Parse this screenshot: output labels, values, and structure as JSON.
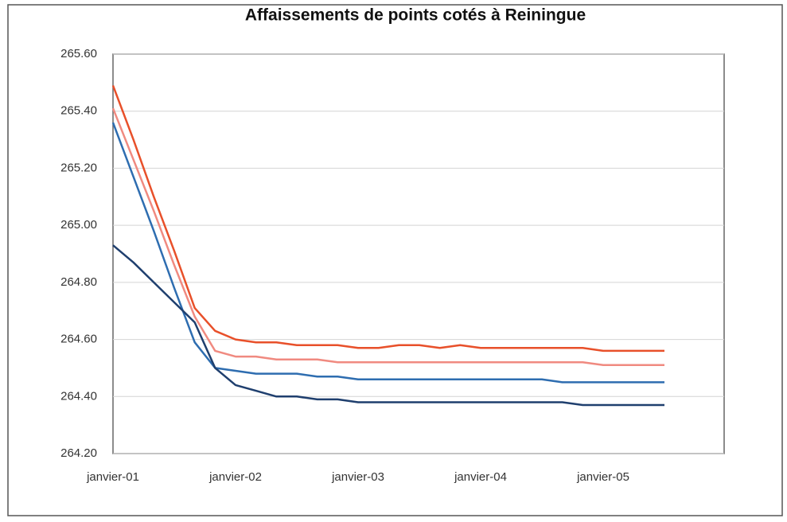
{
  "chart_data": {
    "type": "line",
    "title": "Affaissements de points cotés à Reiningue",
    "categories": [
      "janvier-01",
      null,
      null,
      null,
      null,
      null,
      "janvier-02",
      null,
      null,
      null,
      null,
      null,
      "janvier-03",
      null,
      null,
      null,
      null,
      null,
      "janvier-04",
      null,
      null,
      null,
      null,
      null,
      "janvier-05",
      null,
      null,
      null
    ],
    "series": [
      {
        "color": "#e8502a",
        "values": [
          265.49,
          265.3,
          265.1,
          264.91,
          264.71,
          264.63,
          264.6,
          264.59,
          264.59,
          264.58,
          264.58,
          264.58,
          264.57,
          264.57,
          264.58,
          264.58,
          264.57,
          264.58,
          264.57,
          264.57,
          264.57,
          264.57,
          264.57,
          264.57,
          264.56,
          264.56,
          264.56,
          264.56
        ]
      },
      {
        "color": "#f08a80",
        "values": [
          265.41,
          265.23,
          265.05,
          264.86,
          264.68,
          264.56,
          264.54,
          264.54,
          264.53,
          264.53,
          264.53,
          264.52,
          264.52,
          264.52,
          264.52,
          264.52,
          264.52,
          264.52,
          264.52,
          264.52,
          264.52,
          264.52,
          264.52,
          264.52,
          264.51,
          264.51,
          264.51,
          264.51
        ]
      },
      {
        "color": "#2e6db0",
        "values": [
          265.36,
          265.17,
          264.98,
          264.78,
          264.59,
          264.5,
          264.49,
          264.48,
          264.48,
          264.48,
          264.47,
          264.47,
          264.46,
          264.46,
          264.46,
          264.46,
          264.46,
          264.46,
          264.46,
          264.46,
          264.46,
          264.46,
          264.45,
          264.45,
          264.45,
          264.45,
          264.45,
          264.45
        ]
      },
      {
        "color": "#1f3f6e",
        "values": [
          264.93,
          264.87,
          264.8,
          264.73,
          264.66,
          264.5,
          264.44,
          264.42,
          264.4,
          264.4,
          264.39,
          264.39,
          264.38,
          264.38,
          264.38,
          264.38,
          264.38,
          264.38,
          264.38,
          264.38,
          264.38,
          264.38,
          264.38,
          264.37,
          264.37,
          264.37,
          264.37,
          264.37
        ]
      }
    ],
    "ylim": [
      264.2,
      265.6
    ],
    "yticks": [
      {
        "value": 264.2,
        "label": "264.20"
      },
      {
        "value": 264.4,
        "label": "264.40"
      },
      {
        "value": 264.6,
        "label": "264.60"
      },
      {
        "value": 264.8,
        "label": "264.80"
      },
      {
        "value": 265.0,
        "label": "265.00"
      },
      {
        "value": 265.2,
        "label": "265.20"
      },
      {
        "value": 265.4,
        "label": "265.40"
      },
      {
        "value": 265.6,
        "label": "265.60"
      }
    ],
    "grid": true
  }
}
